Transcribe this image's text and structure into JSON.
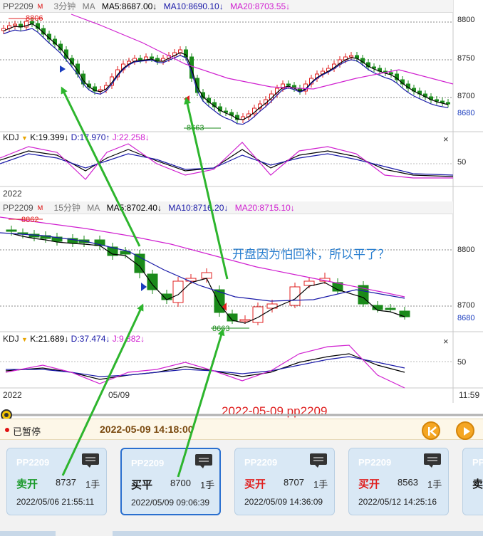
{
  "top_pane": {
    "symbol": "PP2209",
    "symbol_mark": "M",
    "period": "3分钟",
    "ma_label": "MA",
    "ma5": "MA5:8687.00↓",
    "ma10": "MA10:8690.10↓",
    "ma20": "MA20:8703.55↓",
    "high_label": "8806",
    "low_label": "8663",
    "axis": [
      "8800",
      "8750",
      "8700"
    ],
    "axis_blue": "8680",
    "kdj_label": "KDJ",
    "kdj_k": "K:19.399↓",
    "kdj_d": "D:17.970↑",
    "kdj_j": "J:22.258↓",
    "kdj_axis": "50",
    "year": "2022",
    "close_symbol": "×"
  },
  "bottom_pane": {
    "symbol": "PP2209",
    "symbol_mark": "M",
    "period": "15分钟",
    "ma_label": "MA",
    "ma5": "MA5:8702.40↓",
    "ma10": "MA10:8716.20↓",
    "ma20": "MA20:8715.10↓",
    "high_label": "8862",
    "low_label": "8663",
    "axis": [
      "8800",
      "8700"
    ],
    "axis_blue": "8680",
    "kdj_label": "KDJ",
    "kdj_k": "K:21.689↓",
    "kdj_d": "D:37.474↓",
    "kdj_j": "J:9.882↓",
    "kdj_axis": "50",
    "year": "2022",
    "date_tick": "05/09",
    "time_tick": "11:59",
    "close_symbol": "×"
  },
  "annotation_text": "开盘因为怕回补，所以平了？",
  "overlay_title": "2022-05-09 pp2209",
  "status": {
    "text": "已暂停",
    "time": "2022-05-09 14:18:00"
  },
  "cards": [
    {
      "symbol": "PP2209",
      "action": "卖开",
      "color": "green",
      "price": "8737",
      "qty": "1手",
      "time": "2022/05/06 21:55:11"
    },
    {
      "symbol": "PP2209",
      "action": "买平",
      "color": "black",
      "price": "8700",
      "qty": "1手",
      "time": "2022/05/09 09:06:39"
    },
    {
      "symbol": "PP2209",
      "action": "买开",
      "color": "red",
      "price": "8707",
      "qty": "1手",
      "time": "2022/05/09 14:36:09"
    },
    {
      "symbol": "PP2209",
      "action": "买开",
      "color": "red",
      "price": "8563",
      "qty": "1手",
      "time": "2022/05/12 14:25:16"
    },
    {
      "symbol": "PP",
      "action": "卖",
      "color": "black",
      "price": "",
      "qty": "",
      "time": ""
    }
  ],
  "colors": {
    "up": "#e02020",
    "down": "#1a8a1a",
    "ma5": "#000000",
    "ma10": "#1a1aa8",
    "ma20": "#d020d0",
    "arrow": "#2db52d",
    "accent": "#f5a623"
  }
}
